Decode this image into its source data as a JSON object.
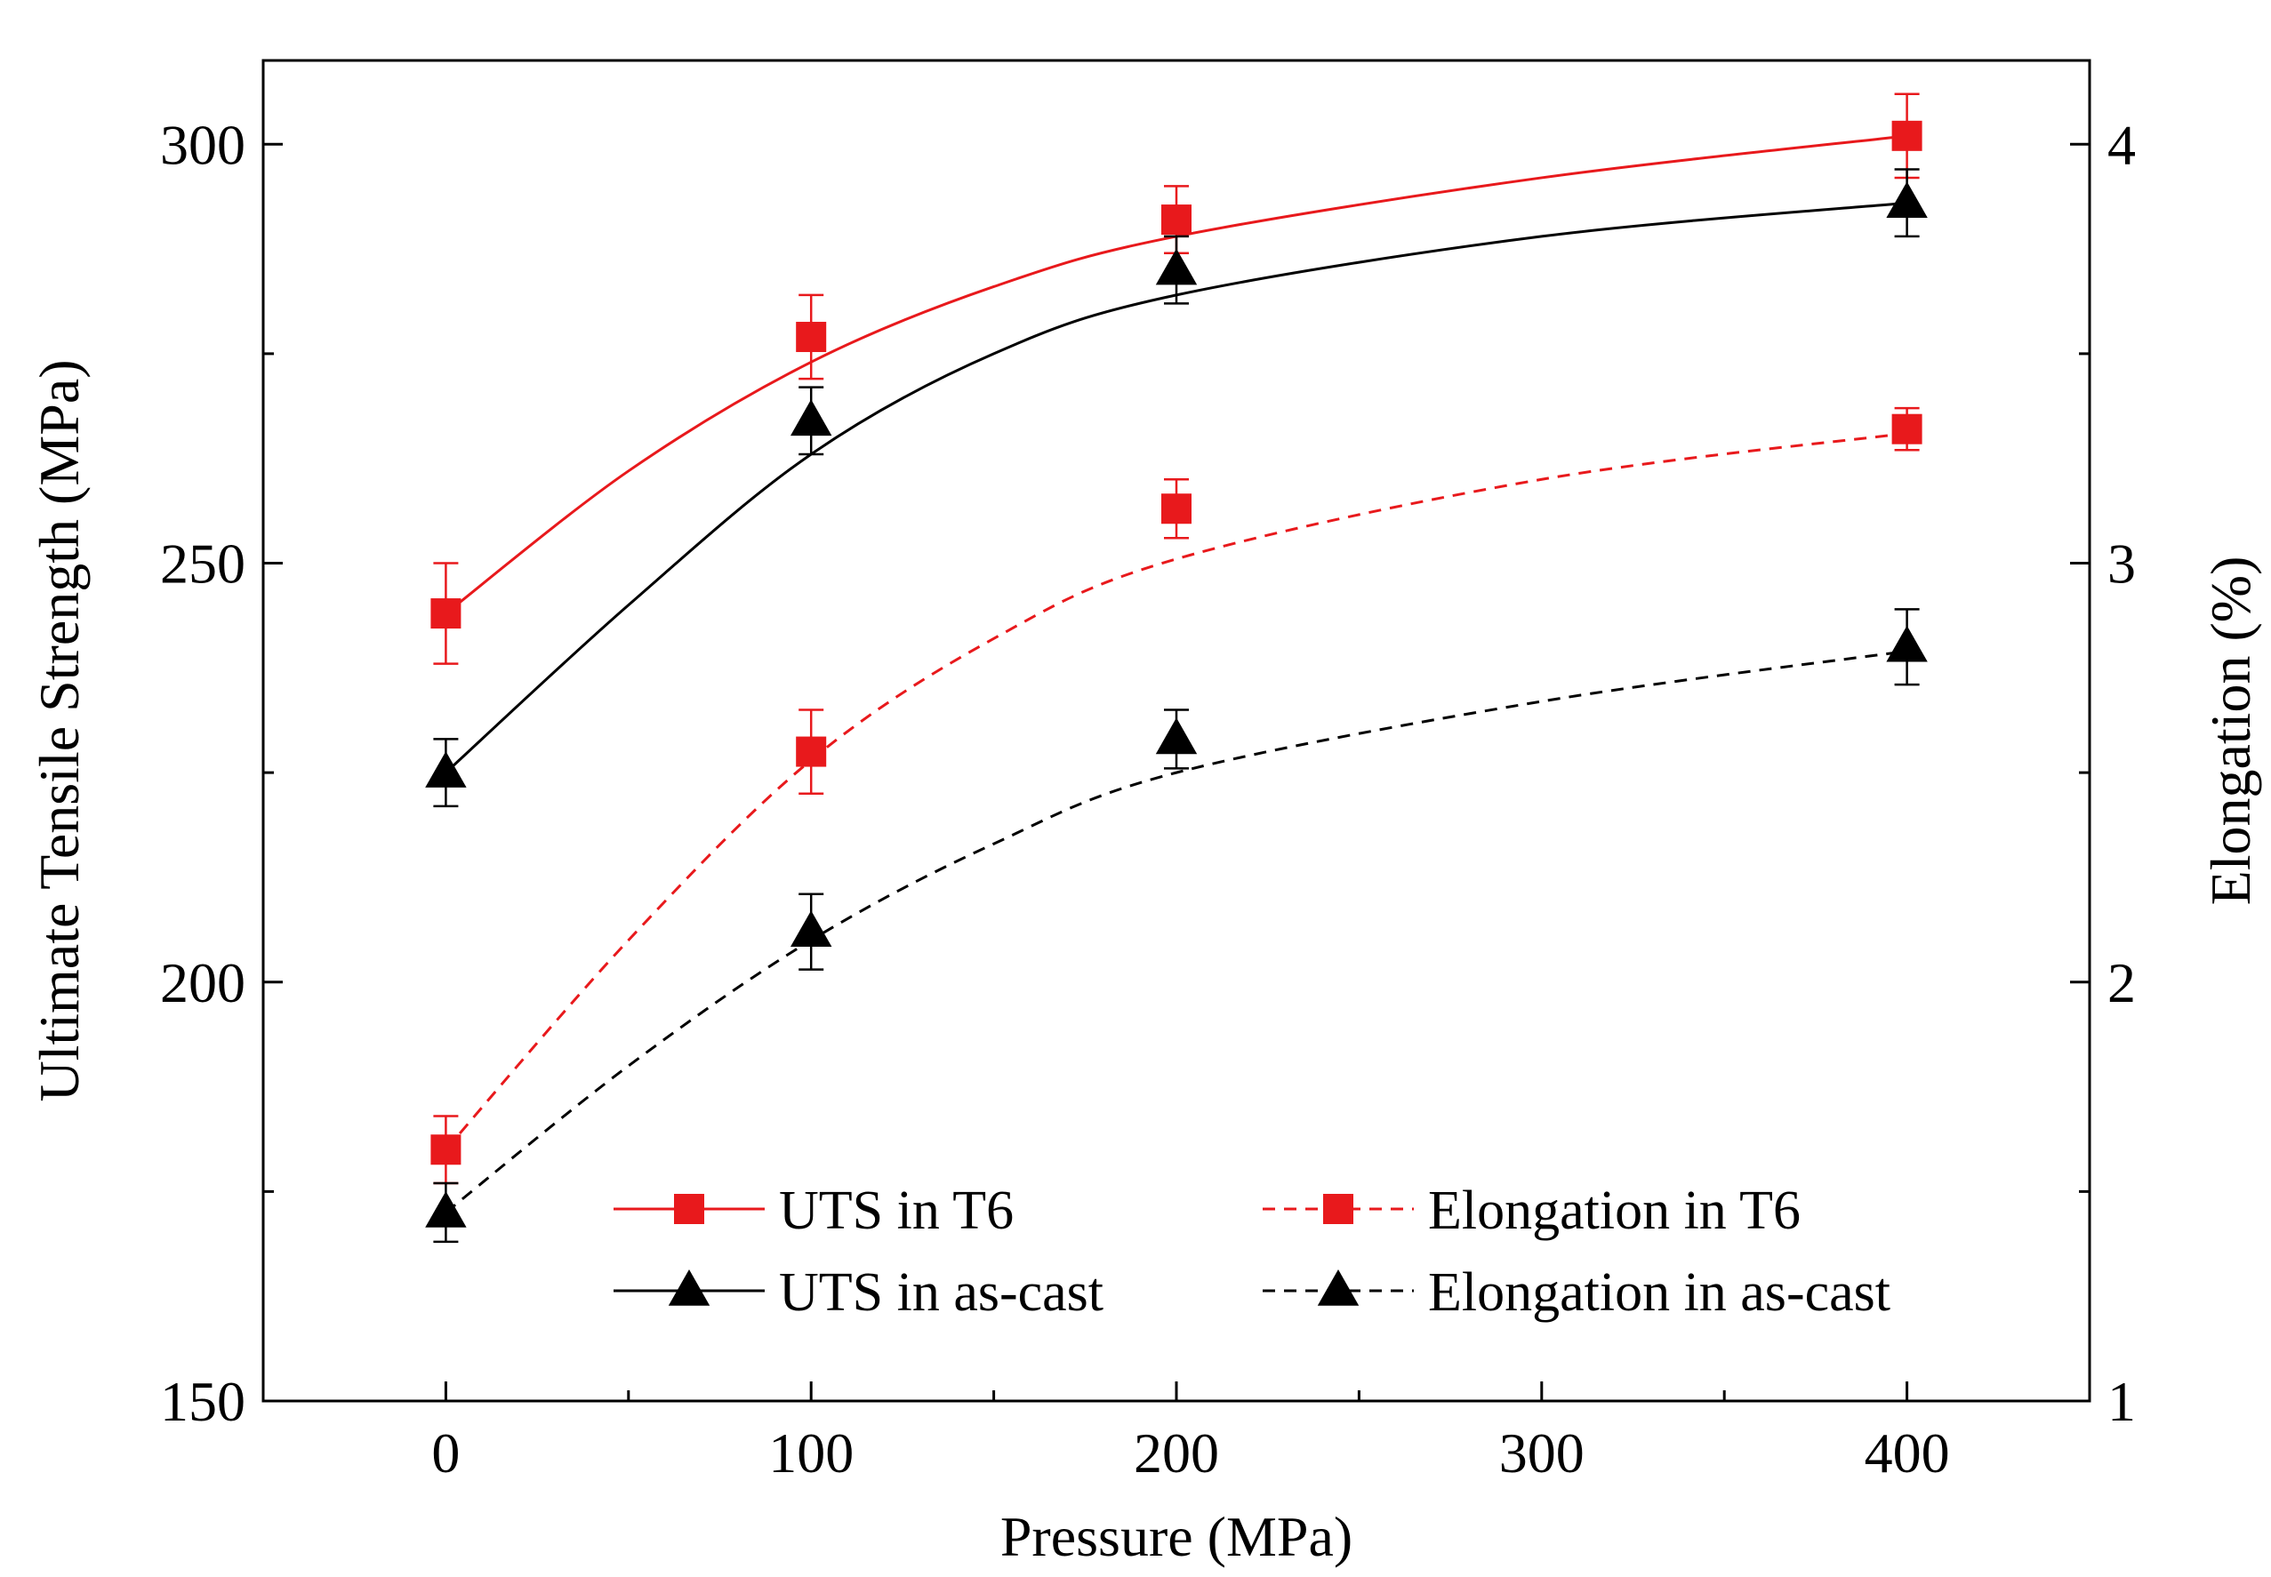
{
  "chart_data": {
    "type": "line",
    "title": "",
    "xlabel": "Pressure (MPa)",
    "ylabel_left": "Ultimate Tensile Strength (MPa)",
    "ylabel_right": "Elongation (%)",
    "xlim": [
      -50,
      450
    ],
    "ylim_left": [
      150,
      310
    ],
    "ylim_right": [
      1,
      4.2
    ],
    "xticks": [
      0,
      100,
      200,
      300,
      400
    ],
    "xticks_minor": [
      50,
      150,
      250,
      350
    ],
    "yticks_left": [
      150,
      200,
      250,
      300
    ],
    "yticks_left_minor": [
      175,
      225,
      275
    ],
    "yticks_right": [
      1,
      2,
      3,
      4
    ],
    "yticks_right_minor": [
      1.5,
      2.5,
      3.5
    ],
    "grid": false,
    "legend_position": "bottom-center",
    "series": [
      {
        "name": "UTS in T6",
        "axis": "left",
        "marker": "square",
        "line_style": "solid",
        "color": "#e8191c",
        "x": [
          0,
          100,
          200,
          400
        ],
        "y": [
          244,
          277,
          291,
          301
        ],
        "error": [
          6,
          5,
          4,
          5
        ],
        "fit": [
          [
            0,
            244
          ],
          [
            50,
            261
          ],
          [
            100,
            274
          ],
          [
            150,
            283
          ],
          [
            200,
            289
          ],
          [
            300,
            296
          ],
          [
            400,
            301
          ]
        ]
      },
      {
        "name": "UTS in as-cast",
        "axis": "left",
        "marker": "triangle",
        "line_style": "solid",
        "color": "#000000",
        "x": [
          0,
          100,
          200,
          400
        ],
        "y": [
          225,
          267,
          285,
          293
        ],
        "error": [
          4,
          4,
          4,
          4
        ],
        "fit": [
          [
            0,
            225
          ],
          [
            50,
            245
          ],
          [
            100,
            263
          ],
          [
            150,
            275
          ],
          [
            200,
            282
          ],
          [
            300,
            289
          ],
          [
            400,
            293
          ]
        ]
      },
      {
        "name": "Elongation in T6",
        "axis": "right",
        "marker": "square",
        "line_style": "dashed",
        "color": "#e8191c",
        "x": [
          0,
          100,
          200,
          400
        ],
        "y": [
          1.6,
          2.55,
          3.13,
          3.32
        ],
        "error": [
          0.08,
          0.1,
          0.07,
          0.05
        ],
        "fit": [
          [
            0,
            1.6
          ],
          [
            50,
            2.1
          ],
          [
            100,
            2.53
          ],
          [
            150,
            2.82
          ],
          [
            200,
            3.01
          ],
          [
            300,
            3.2
          ],
          [
            400,
            3.31
          ]
        ]
      },
      {
        "name": "Elongation in as-cast",
        "axis": "right",
        "marker": "triangle",
        "line_style": "dashed",
        "color": "#000000",
        "x": [
          0,
          100,
          200,
          400
        ],
        "y": [
          1.45,
          2.12,
          2.58,
          2.8
        ],
        "error": [
          0.07,
          0.09,
          0.07,
          0.09
        ],
        "fit": [
          [
            0,
            1.45
          ],
          [
            50,
            1.8
          ],
          [
            100,
            2.1
          ],
          [
            150,
            2.33
          ],
          [
            200,
            2.5
          ],
          [
            300,
            2.67
          ],
          [
            400,
            2.79
          ]
        ]
      }
    ]
  }
}
